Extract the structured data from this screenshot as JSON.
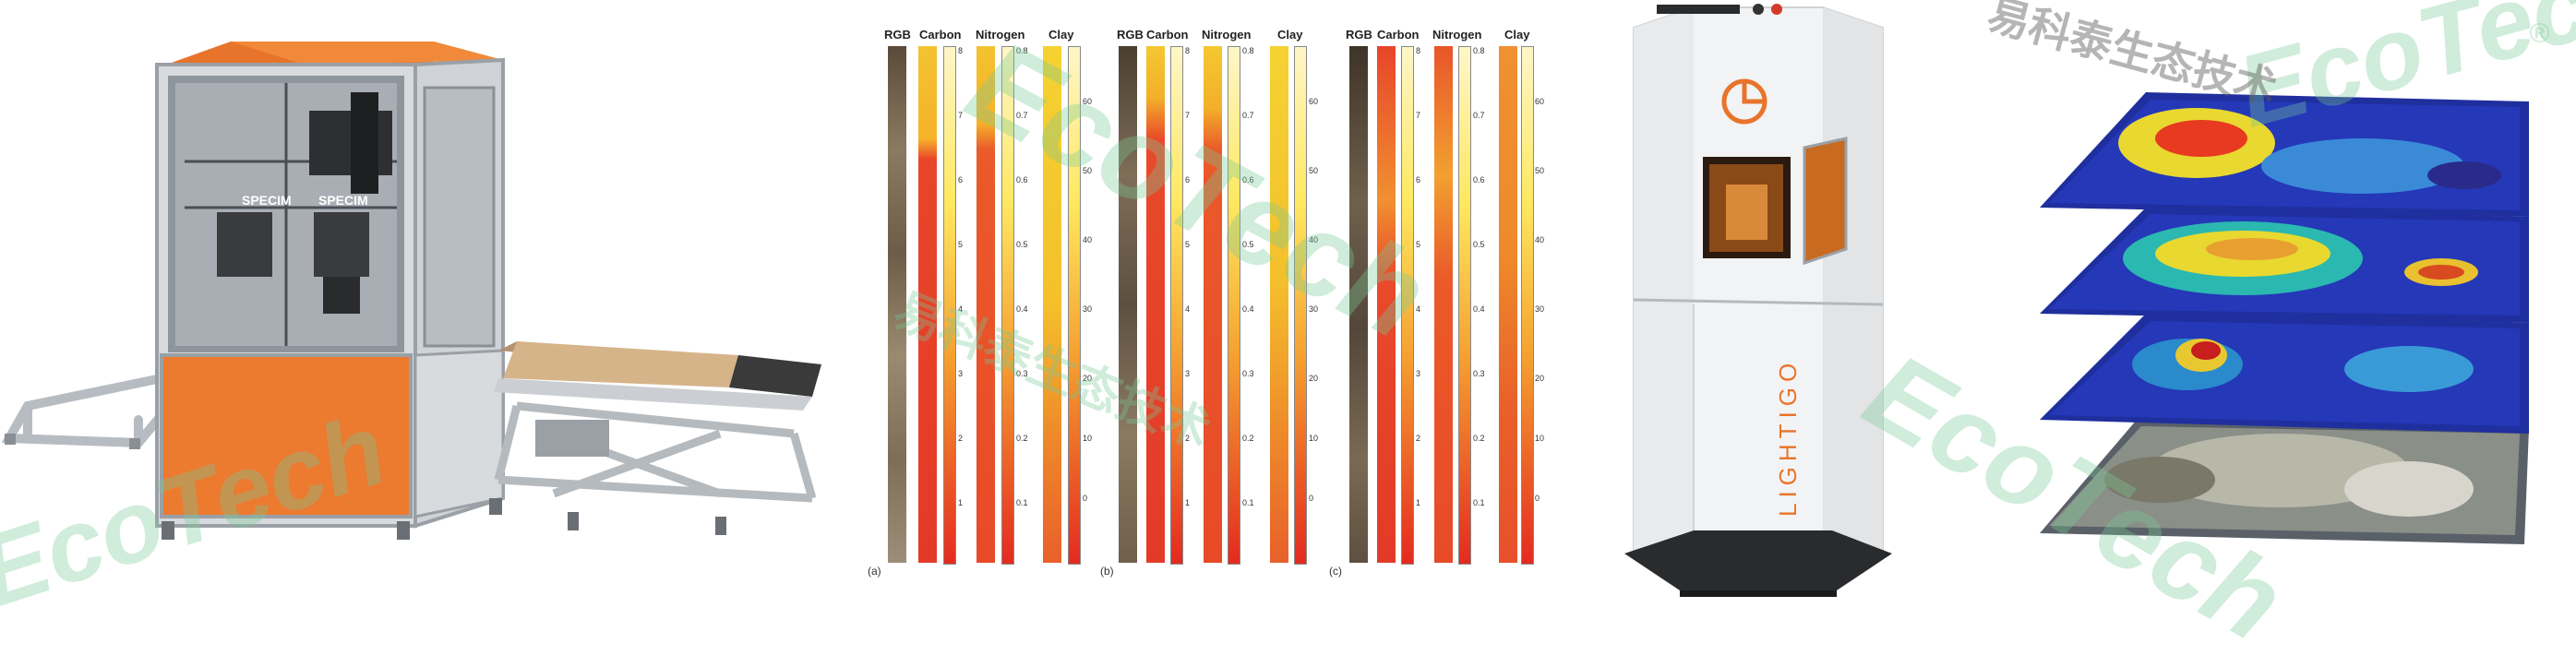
{
  "scanner": {
    "brand_left": "SPECIM",
    "brand_right": "SPECIM"
  },
  "core_panels": [
    {
      "letter": "(a)",
      "titles": [
        "RGB",
        "Carbon",
        "Nitrogen",
        "Clay"
      ],
      "carbon_ticks": [
        "8",
        "7",
        "6",
        "5",
        "4",
        "3",
        "2",
        "1"
      ],
      "nitrogen_ticks": [
        "0.8",
        "0.7",
        "0.6",
        "0.5",
        "0.4",
        "0.3",
        "0.2",
        "0.1"
      ],
      "clay_ticks": [
        "60",
        "50",
        "40",
        "30",
        "20",
        "10",
        "0"
      ]
    },
    {
      "letter": "(b)",
      "titles": [
        "RGB",
        "Carbon",
        "Nitrogen",
        "Clay"
      ],
      "carbon_ticks": [
        "8",
        "7",
        "6",
        "5",
        "4",
        "3",
        "2",
        "1"
      ],
      "nitrogen_ticks": [
        "0.8",
        "0.7",
        "0.6",
        "0.5",
        "0.4",
        "0.3",
        "0.2",
        "0.1"
      ],
      "clay_ticks": [
        "60",
        "50",
        "40",
        "30",
        "20",
        "10",
        "0"
      ]
    },
    {
      "letter": "(c)",
      "titles": [
        "RGB",
        "Carbon",
        "Nitrogen",
        "Clay"
      ],
      "carbon_ticks": [
        "8",
        "7",
        "6",
        "5",
        "4",
        "3",
        "2",
        "1"
      ],
      "nitrogen_ticks": [
        "0.8",
        "0.7",
        "0.6",
        "0.5",
        "0.4",
        "0.3",
        "0.2",
        "0.1"
      ],
      "clay_ticks": [
        "60",
        "50",
        "40",
        "30",
        "20",
        "10",
        "0"
      ]
    }
  ],
  "lightigo": {
    "label": "LIGHTIGO"
  },
  "watermarks": {
    "latin": "EcoTech",
    "registered": "®",
    "chinese": "易科泰生态技术"
  },
  "colors": {
    "accent_orange": "#e8742c",
    "watermark_green": "#7cc896",
    "map_blue": "#2438b8"
  }
}
